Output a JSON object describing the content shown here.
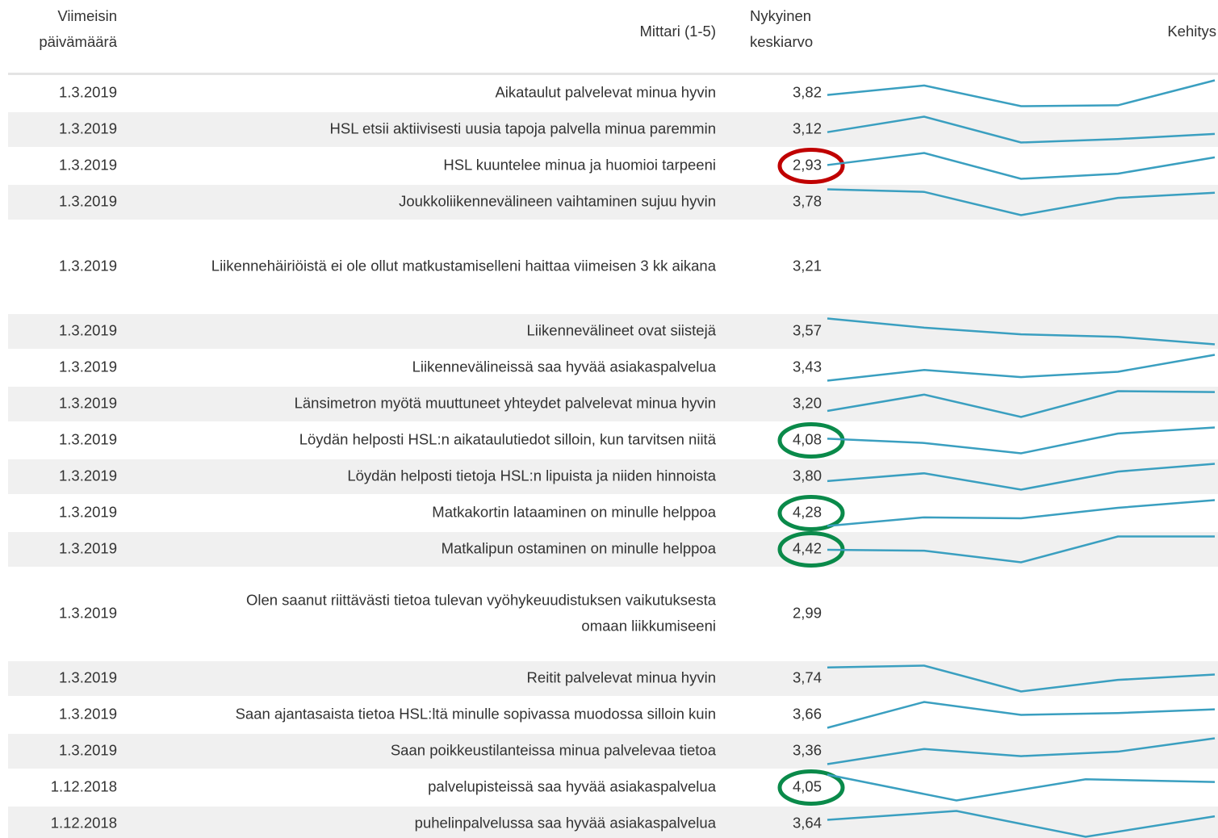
{
  "header": {
    "date": [
      "Viimeisin",
      "päivämäärä"
    ],
    "metric": "Mittari (1-5)",
    "average": [
      "Nykyinen",
      "keskiarvo"
    ],
    "trend": "Kehitys"
  },
  "rows": [
    {
      "date": "1.3.2019",
      "metric": "Aikataulut palvelevat minua hyvin",
      "average": "3,82",
      "trend": [
        13,
        24,
        0,
        1,
        30
      ]
    },
    {
      "date": "1.3.2019",
      "metric": "HSL etsii aktiivisesti uusia tapoja palvella minua paremmin",
      "average": "3,12",
      "trend": [
        12,
        30,
        0,
        4,
        10
      ]
    },
    {
      "date": "1.3.2019",
      "metric": "HSL kuuntelee minua ja huomioi tarpeeni",
      "average": "2,93",
      "trend": [
        16,
        30,
        0,
        6,
        25
      ],
      "highlight": "#c00000"
    },
    {
      "date": "1.3.2019",
      "metric": "Joukkoliikennevälineen vaihtaminen sujuu hyvin",
      "average": "3,78",
      "trend": [
        30,
        27,
        0,
        20,
        26
      ]
    },
    {
      "date": "1.3.2019",
      "metric": "Liikennehäiriöistä ei ole ollut matkustamiselleni haittaa viimeisen 3 kk aikana",
      "average": "3,21"
    },
    {
      "date": "1.3.2019",
      "metric": "Liikennevälineet ovat siistejä",
      "average": "3,57",
      "trend": [
        31,
        20,
        12,
        9,
        0
      ]
    },
    {
      "date": "1.3.2019",
      "metric": "Liikennevälineissä saa hyvää asiakaspalvelua",
      "average": "3,43",
      "trend": [
        0,
        12,
        4,
        10,
        29
      ]
    },
    {
      "date": "1.3.2019",
      "metric": "Länsimetron myötä muuttuneet yhteydet palvelevat minua hyvin",
      "average": "3,20",
      "trend": [
        7,
        26,
        0,
        30,
        29
      ]
    },
    {
      "date": "1.3.2019",
      "metric": "Löydän helposti HSL:n aikataulutiedot silloin, kun tarvitsen niitä",
      "average": "4,08",
      "trend": [
        17,
        12,
        0,
        23,
        30
      ],
      "highlight": "#0a8a4a"
    },
    {
      "date": "1.3.2019",
      "metric": "Löydän helposti tietoja HSL:n lipuista ja niiden hinnoista",
      "average": "3,80",
      "trend": [
        10,
        19,
        0,
        21,
        30
      ]
    },
    {
      "date": "1.3.2019",
      "metric": "Matkakortin lataaminen on minulle helppoa",
      "average": "4,28",
      "trend": [
        0,
        9,
        8,
        19,
        27
      ],
      "highlight": "#0a8a4a"
    },
    {
      "date": "1.3.2019",
      "metric": "Matkalipun ostaminen on minulle helppoa",
      "average": "4,42",
      "trend": [
        14,
        13,
        0,
        29,
        29
      ],
      "highlight": "#0a8a4a"
    },
    {
      "date": "1.3.2019",
      "metric": [
        "Olen saanut riittävästi tietoa tulevan vyöhykeuudistuksen vaikutuksesta",
        "omaan liikkumiseeni"
      ],
      "average": "2,99"
    },
    {
      "date": "1.3.2019",
      "metric": "Reitit palvelevat minua hyvin",
      "average": "3,74",
      "trend": [
        27,
        29,
        0,
        13,
        19
      ]
    },
    {
      "date": "1.3.2019",
      "metric": "Saan ajantasaista tietoa HSL:ltä minulle sopivassa muodossa silloin kuin",
      "average": "3,66",
      "trend": [
        0,
        28,
        14,
        16,
        20
      ]
    },
    {
      "date": "1.3.2019",
      "metric": "Saan poikkeustilanteissa minua palvelevaa tietoa",
      "average": "3,36",
      "trend": [
        0,
        17,
        9,
        14,
        29
      ]
    },
    {
      "date": "1.12.2018",
      "metric": "palvelupisteissä saa hyvää asiakaspalvelua",
      "average": "4,05",
      "trend": [
        28,
        0,
        23,
        20
      ],
      "highlight": "#0a8a4a"
    },
    {
      "date": "1.12.2018",
      "metric": "puhelinpalvelussa saa hyvää asiakaspalvelua",
      "average": "3,64",
      "trend": [
        19,
        29,
        0,
        23
      ]
    }
  ]
}
